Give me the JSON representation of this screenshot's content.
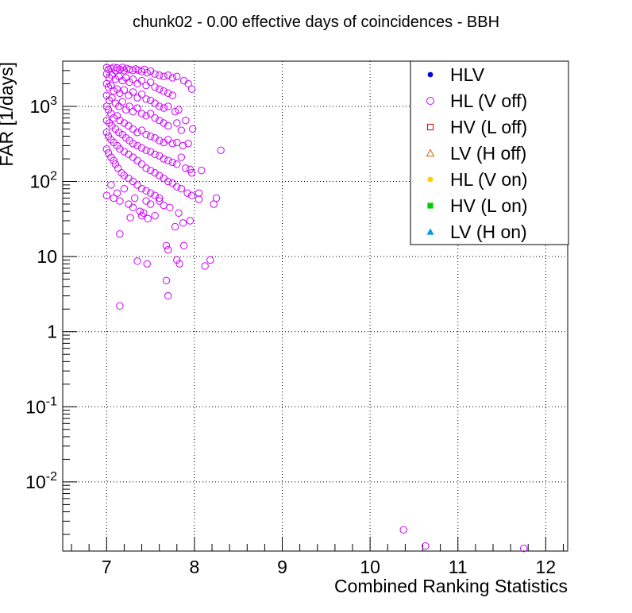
{
  "chart_data": {
    "type": "scatter",
    "title": "chunk02 - 0.00 effective days of coincidences - BBH",
    "xlabel": "Combined Ranking Statistics",
    "ylabel": "FAR [1/days]",
    "xlim": [
      6.5,
      12.25
    ],
    "ylim": [
      0.0012,
      4000
    ],
    "yscale": "log",
    "grid": true,
    "legend_position": "top-right",
    "x_ticks": [
      "7",
      "8",
      "9",
      "10",
      "11",
      "12"
    ],
    "y_ticks": [
      {
        "mant": "10",
        "exp": "-2",
        "value": 0.01
      },
      {
        "mant": "10",
        "exp": "-1",
        "value": 0.1
      },
      {
        "mant": "1",
        "exp": "",
        "value": 1
      },
      {
        "mant": "10",
        "exp": "",
        "value": 10
      },
      {
        "mant": "10",
        "exp": "2",
        "value": 100
      },
      {
        "mant": "10",
        "exp": "3",
        "value": 1000
      }
    ],
    "series": [
      {
        "name": "HLV",
        "marker": "filled-circle",
        "color": "#0000ee",
        "points": []
      },
      {
        "name": "HL (V off)",
        "marker": "open-circle",
        "color": "#cc00ff",
        "points": [
          [
            7.0,
            3300
          ],
          [
            7.02,
            3100
          ],
          [
            7.05,
            3200
          ],
          [
            7.08,
            3300
          ],
          [
            7.1,
            3000
          ],
          [
            7.12,
            3250
          ],
          [
            7.15,
            3100
          ],
          [
            7.18,
            3300
          ],
          [
            7.2,
            3000
          ],
          [
            7.23,
            3200
          ],
          [
            7.26,
            3100
          ],
          [
            7.3,
            3000
          ],
          [
            7.33,
            3150
          ],
          [
            7.36,
            3050
          ],
          [
            7.4,
            2900
          ],
          [
            7.43,
            3100
          ],
          [
            7.46,
            2800
          ],
          [
            7.5,
            2950
          ],
          [
            7.55,
            2700
          ],
          [
            7.6,
            2600
          ],
          [
            7.65,
            2500
          ],
          [
            7.7,
            2600
          ],
          [
            7.75,
            2400
          ],
          [
            7.8,
            2500
          ],
          [
            7.88,
            2200
          ],
          [
            7.93,
            2000
          ],
          [
            7.97,
            1700
          ],
          [
            7.0,
            2700
          ],
          [
            7.03,
            2400
          ],
          [
            7.06,
            2600
          ],
          [
            7.1,
            2300
          ],
          [
            7.14,
            2500
          ],
          [
            7.18,
            2200
          ],
          [
            7.22,
            2400
          ],
          [
            7.26,
            2100
          ],
          [
            7.3,
            2300
          ],
          [
            7.35,
            2000
          ],
          [
            7.4,
            2200
          ],
          [
            7.45,
            1900
          ],
          [
            7.5,
            2100
          ],
          [
            7.55,
            1800
          ],
          [
            7.6,
            1700
          ],
          [
            7.65,
            1600
          ],
          [
            7.7,
            1500
          ],
          [
            7.75,
            1400
          ],
          [
            7.0,
            2000
          ],
          [
            7.02,
            1800
          ],
          [
            7.05,
            1900
          ],
          [
            7.08,
            1600
          ],
          [
            7.12,
            1700
          ],
          [
            7.15,
            1500
          ],
          [
            7.2,
            1650
          ],
          [
            7.25,
            1400
          ],
          [
            7.3,
            1550
          ],
          [
            7.35,
            1300
          ],
          [
            7.4,
            1450
          ],
          [
            7.45,
            1250
          ],
          [
            7.5,
            1200
          ],
          [
            7.55,
            1100
          ],
          [
            7.6,
            1000
          ],
          [
            7.65,
            950
          ],
          [
            7.7,
            1000
          ],
          [
            7.78,
            850
          ],
          [
            7.82,
            900
          ],
          [
            7.0,
            1400
          ],
          [
            7.03,
            1200
          ],
          [
            7.06,
            1300
          ],
          [
            7.1,
            1100
          ],
          [
            7.14,
            1000
          ],
          [
            7.18,
            1150
          ],
          [
            7.22,
            900
          ],
          [
            7.26,
            1000
          ],
          [
            7.3,
            850
          ],
          [
            7.35,
            950
          ],
          [
            7.4,
            800
          ],
          [
            7.45,
            750
          ],
          [
            7.5,
            800
          ],
          [
            7.55,
            700
          ],
          [
            7.6,
            650
          ],
          [
            7.65,
            600
          ],
          [
            7.7,
            550
          ],
          [
            7.8,
            600
          ],
          [
            7.85,
            480
          ],
          [
            7.9,
            650
          ],
          [
            7.98,
            500
          ],
          [
            7.0,
            1000
          ],
          [
            7.02,
            900
          ],
          [
            7.05,
            800
          ],
          [
            7.08,
            700
          ],
          [
            7.12,
            750
          ],
          [
            7.15,
            650
          ],
          [
            7.2,
            600
          ],
          [
            7.25,
            550
          ],
          [
            7.3,
            500
          ],
          [
            7.35,
            450
          ],
          [
            7.4,
            480
          ],
          [
            7.45,
            420
          ],
          [
            7.5,
            400
          ],
          [
            7.55,
            380
          ],
          [
            7.6,
            350
          ],
          [
            7.65,
            330
          ],
          [
            7.7,
            360
          ],
          [
            7.75,
            320
          ],
          [
            7.8,
            330
          ],
          [
            7.87,
            300
          ],
          [
            7.93,
            320
          ],
          [
            8.3,
            260
          ],
          [
            7.0,
            650
          ],
          [
            7.03,
            600
          ],
          [
            7.06,
            550
          ],
          [
            7.1,
            500
          ],
          [
            7.14,
            450
          ],
          [
            7.18,
            420
          ],
          [
            7.22,
            380
          ],
          [
            7.26,
            350
          ],
          [
            7.3,
            320
          ],
          [
            7.35,
            300
          ],
          [
            7.4,
            280
          ],
          [
            7.45,
            260
          ],
          [
            7.5,
            250
          ],
          [
            7.55,
            230
          ],
          [
            7.6,
            220
          ],
          [
            7.65,
            200
          ],
          [
            7.7,
            190
          ],
          [
            7.75,
            180
          ],
          [
            7.8,
            170
          ],
          [
            7.85,
            210
          ],
          [
            7.9,
            150
          ],
          [
            7.95,
            145
          ],
          [
            8.08,
            140
          ],
          [
            7.97,
            130
          ],
          [
            7.0,
            450
          ],
          [
            7.02,
            400
          ],
          [
            7.05,
            360
          ],
          [
            7.08,
            330
          ],
          [
            7.12,
            300
          ],
          [
            7.15,
            270
          ],
          [
            7.2,
            250
          ],
          [
            7.25,
            230
          ],
          [
            7.3,
            210
          ],
          [
            7.35,
            190
          ],
          [
            7.4,
            170
          ],
          [
            7.45,
            150
          ],
          [
            7.5,
            140
          ],
          [
            7.55,
            130
          ],
          [
            7.6,
            120
          ],
          [
            7.65,
            110
          ],
          [
            7.7,
            100
          ],
          [
            7.75,
            95
          ],
          [
            7.8,
            85
          ],
          [
            7.85,
            80
          ],
          [
            7.92,
            70
          ],
          [
            7.97,
            65
          ],
          [
            8.05,
            70
          ],
          [
            7.0,
            270
          ],
          [
            7.02,
            240
          ],
          [
            7.05,
            210
          ],
          [
            7.08,
            190
          ],
          [
            7.1,
            170
          ],
          [
            7.13,
            150
          ],
          [
            7.17,
            130
          ],
          [
            7.2,
            120
          ],
          [
            7.25,
            110
          ],
          [
            7.3,
            100
          ],
          [
            7.35,
            90
          ],
          [
            7.4,
            80
          ],
          [
            7.45,
            75
          ],
          [
            7.5,
            70
          ],
          [
            7.55,
            65
          ],
          [
            7.6,
            60
          ],
          [
            7.0,
            65
          ],
          [
            7.05,
            90
          ],
          [
            7.08,
            60
          ],
          [
            7.12,
            70
          ],
          [
            7.15,
            55
          ],
          [
            7.2,
            80
          ],
          [
            7.25,
            50
          ],
          [
            7.3,
            45
          ],
          [
            7.32,
            60
          ],
          [
            7.38,
            40
          ],
          [
            7.42,
            38
          ],
          [
            7.45,
            55
          ],
          [
            7.5,
            50
          ],
          [
            7.55,
            35
          ],
          [
            7.6,
            55
          ],
          [
            7.65,
            48
          ],
          [
            7.72,
            45
          ],
          [
            7.82,
            38
          ],
          [
            7.87,
            28
          ],
          [
            7.95,
            30
          ],
          [
            8.05,
            58
          ],
          [
            8.22,
            50
          ],
          [
            8.25,
            60
          ],
          [
            7.47,
            32
          ],
          [
            7.4,
            35
          ],
          [
            7.15,
            20
          ],
          [
            7.27,
            33
          ],
          [
            7.35,
            8.7
          ],
          [
            7.46,
            8.0
          ],
          [
            7.68,
            14
          ],
          [
            7.7,
            12.3
          ],
          [
            7.78,
            25
          ],
          [
            7.8,
            9.0
          ],
          [
            7.83,
            8.0
          ],
          [
            7.88,
            14
          ],
          [
            8.12,
            7.5
          ],
          [
            8.18,
            9.0
          ],
          [
            7.15,
            2.2
          ],
          [
            7.68,
            4.8
          ],
          [
            7.7,
            3.0
          ],
          [
            10.38,
            0.0023
          ],
          [
            10.63,
            0.0014
          ],
          [
            11.75,
            0.0013
          ]
        ]
      },
      {
        "name": "HV (L off)",
        "marker": "open-square",
        "color": "#bb0000",
        "points": []
      },
      {
        "name": "LV (H off)",
        "marker": "open-triangle",
        "color": "#cc6600",
        "points": []
      },
      {
        "name": "HL (V on)",
        "marker": "filled-circle",
        "color": "#ffcc00",
        "points": []
      },
      {
        "name": "HV (L on)",
        "marker": "filled-square",
        "color": "#00cc00",
        "points": []
      },
      {
        "name": "LV (H on)",
        "marker": "filled-triangle",
        "color": "#0099ee",
        "points": []
      }
    ]
  }
}
